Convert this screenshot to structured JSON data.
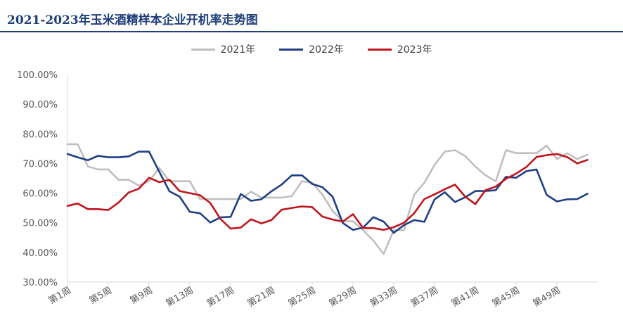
{
  "page": {
    "title": "2021-2023年玉米酒精样本企业开机率走势图"
  },
  "legend": [
    {
      "label": "2021年",
      "color": "#bfbfbf"
    },
    {
      "label": "2022年",
      "color": "#1f3f85"
    },
    {
      "label": "2023年",
      "color": "#c0161d"
    }
  ],
  "chart_data": {
    "type": "line",
    "title": "2021-2023年玉米酒精样本企业开机率走势图",
    "xlabel": "",
    "ylabel": "",
    "ylim": [
      30,
      100
    ],
    "y_tick_labels": [
      "30.00%",
      "40.00%",
      "50.00%",
      "60.00%",
      "70.00%",
      "80.00%",
      "90.00%",
      "100.00%"
    ],
    "x_tick_labels": [
      "第1周",
      "第5周",
      "第9周",
      "第13周",
      "第17周",
      "第21周",
      "第25周",
      "第29周",
      "第33周",
      "第37周",
      "第41周",
      "第45周",
      "第49周"
    ],
    "x_tick_weeks": [
      1,
      5,
      9,
      13,
      17,
      21,
      25,
      29,
      33,
      37,
      41,
      45,
      49
    ],
    "x_range": [
      1,
      53
    ],
    "grid": false,
    "legend_position": "top",
    "series": [
      {
        "name": "2021年",
        "color": "#bfbfbf",
        "values": [
          76.5,
          76.5,
          69,
          68,
          68,
          64.5,
          64.5,
          62.5,
          64,
          68.5,
          64,
          64,
          64,
          58,
          58,
          58,
          58,
          58,
          60.5,
          58.5,
          58.5,
          58.5,
          59,
          64,
          63.5,
          59.5,
          54,
          50.5,
          50.5,
          47.5,
          44,
          39.5,
          47.5,
          47.5,
          59.5,
          63.5,
          69.5,
          74,
          74.5,
          72.5,
          69,
          66,
          64,
          74.5,
          73.5,
          73.5,
          73.5,
          76,
          71.5,
          73.5,
          71.5,
          73
        ]
      },
      {
        "name": "2022年",
        "color": "#1f3f85",
        "values": [
          73.2,
          72.1,
          71.1,
          72.6,
          72.1,
          72.1,
          72.4,
          74,
          74,
          67.2,
          60.6,
          58.8,
          53.7,
          53.2,
          50.1,
          51.8,
          52,
          59.7,
          57.4,
          57.9,
          60.6,
          62.9,
          66,
          66,
          63.1,
          62,
          58.8,
          49.9,
          47.6,
          48.4,
          51.9,
          50.4,
          46.6,
          49.2,
          50.9,
          50.3,
          57.9,
          60.3,
          57,
          58.6,
          60.7,
          60.7,
          61,
          65.5,
          65.2,
          67.4,
          68,
          59.4,
          57.2,
          57.9,
          58,
          59.8
        ]
      },
      {
        "name": "2023年",
        "color": "#c0161d",
        "values": [
          55.7,
          56.5,
          54.6,
          54.6,
          54.3,
          56.8,
          60.2,
          61.5,
          65.2,
          63.7,
          64.5,
          60.7,
          60,
          59.3,
          56.7,
          51.3,
          48,
          48.4,
          51.2,
          49.8,
          50.9,
          54.4,
          55,
          55.5,
          55.3,
          52.1,
          51.1,
          50.4,
          52.9,
          48.2,
          48.2,
          47.6,
          48.5,
          50,
          53.2,
          58,
          59.6,
          61.3,
          62.9,
          58.8,
          56.3,
          61,
          62.2,
          64.8,
          66.6,
          68.8,
          72.2,
          72.8,
          73.2,
          72.2,
          70,
          71.2
        ]
      }
    ]
  }
}
